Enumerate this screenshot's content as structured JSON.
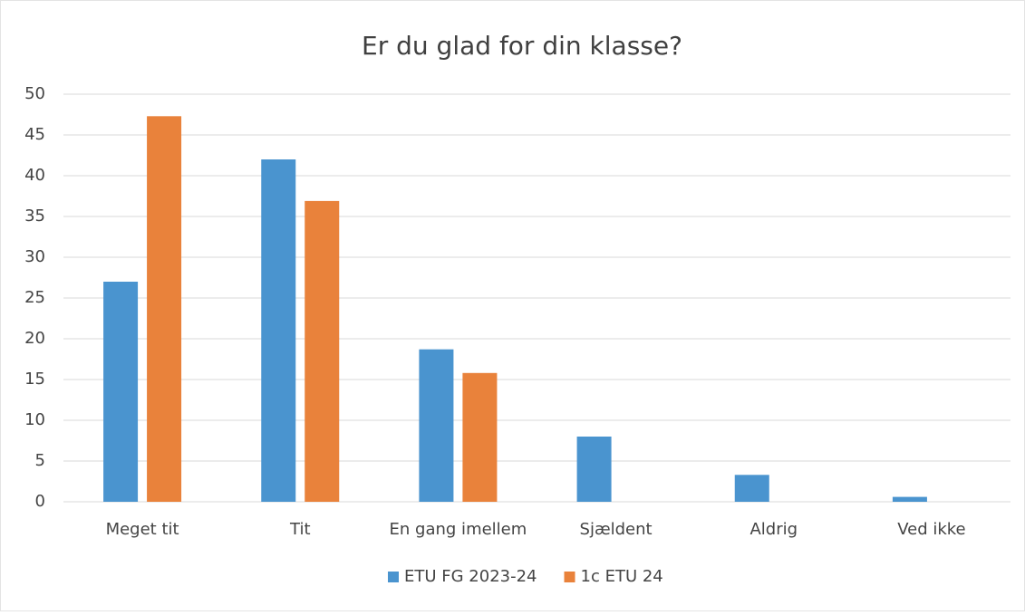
{
  "chart_data": {
    "type": "bar",
    "title": "Er du glad for din klasse?",
    "categories": [
      "Meget tit",
      "Tit",
      "En gang imellem",
      "Sjældent",
      "Aldrig",
      "Ved ikke"
    ],
    "series": [
      {
        "name": "ETU FG 2023-24",
        "color": "#4a94cf",
        "values": [
          27,
          42,
          18.7,
          8,
          3.3,
          0.6
        ]
      },
      {
        "name": "1c ETU 24",
        "color": "#e9823b",
        "values": [
          47.3,
          36.9,
          15.8,
          0,
          0,
          0
        ]
      }
    ],
    "ylim": [
      0,
      50
    ],
    "yticks": [
      0,
      5,
      10,
      15,
      20,
      25,
      30,
      35,
      40,
      45,
      50
    ],
    "grid": true,
    "legend": "bottom"
  }
}
